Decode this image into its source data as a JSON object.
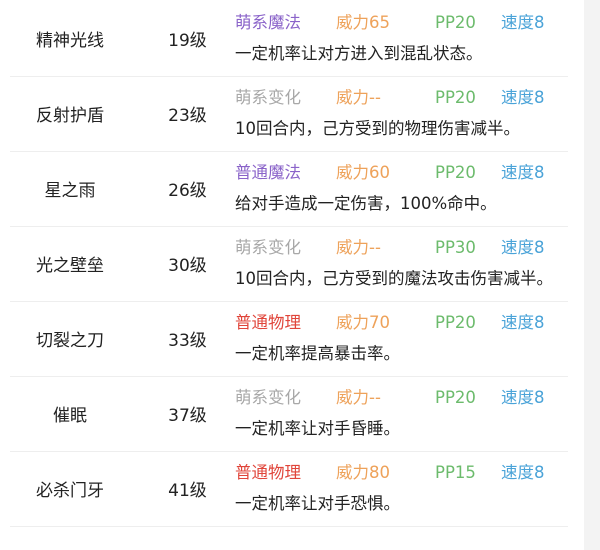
{
  "colors": {
    "萌系魔法": "#8a63c9",
    "普通魔法": "#8a63c9",
    "萌系变化": "#a8a8a8",
    "普通物理": "#e0453a",
    "power": "#eea25a",
    "pp": "#6cbb6c",
    "speed": "#4aa3d8"
  },
  "skills": [
    {
      "name": "精神光线",
      "level": "19级",
      "type": "萌系魔法",
      "power": "威力65",
      "pp": "PP20",
      "speed": "速度8",
      "desc": "一定机率让对方进入到混乱状态。"
    },
    {
      "name": "反射护盾",
      "level": "23级",
      "type": "萌系变化",
      "power": "威力--",
      "pp": "PP20",
      "speed": "速度8",
      "desc": "10回合内，己方受到的物理伤害减半。"
    },
    {
      "name": "星之雨",
      "level": "26级",
      "type": "普通魔法",
      "power": "威力60",
      "pp": "PP20",
      "speed": "速度8",
      "desc": "给对手造成一定伤害，100%命中。"
    },
    {
      "name": "光之壁垒",
      "level": "30级",
      "type": "萌系变化",
      "power": "威力--",
      "pp": "PP30",
      "speed": "速度8",
      "desc": "10回合内，己方受到的魔法攻击伤害减半。"
    },
    {
      "name": "切裂之刀",
      "level": "33级",
      "type": "普通物理",
      "power": "威力70",
      "pp": "PP20",
      "speed": "速度8",
      "desc": "一定机率提高暴击率。"
    },
    {
      "name": "催眠",
      "level": "37级",
      "type": "萌系变化",
      "power": "威力--",
      "pp": "PP20",
      "speed": "速度8",
      "desc": "一定机率让对手昏睡。"
    },
    {
      "name": "必杀门牙",
      "level": "41级",
      "type": "普通物理",
      "power": "威力80",
      "pp": "PP15",
      "speed": "速度8",
      "desc": "一定机率让对手恐惧。"
    }
  ]
}
